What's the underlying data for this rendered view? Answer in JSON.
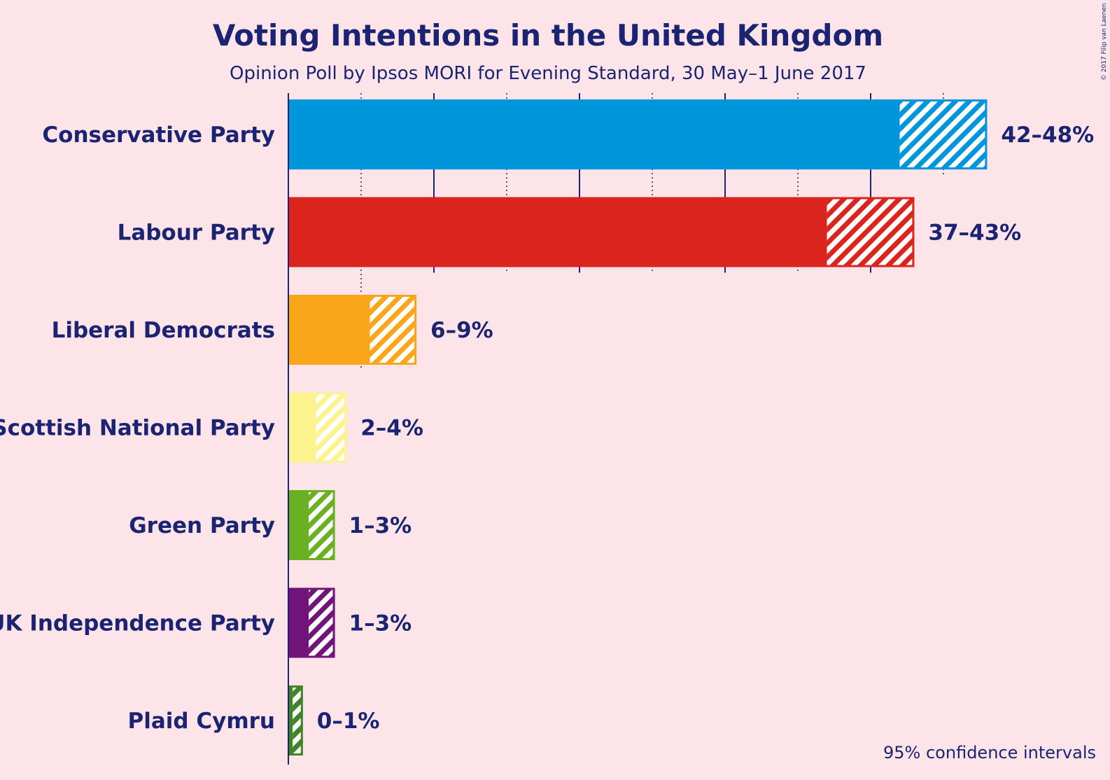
{
  "title": "Voting Intentions in the United Kingdom",
  "subtitle": "Opinion Poll by Ipsos MORI for Evening Standard, 30 May–1 June 2017",
  "note": "95% confidence intervals",
  "copyright": "© 2017 Filip van Laenen",
  "colors": {
    "background": "#fde4e8",
    "text": "#1a2472"
  },
  "chart_data": {
    "type": "bar",
    "orientation": "horizontal",
    "unit": "%",
    "xlim": [
      0,
      50
    ],
    "grid": true,
    "gridlines": [
      5,
      10,
      15,
      20,
      25,
      30,
      35,
      40,
      45
    ],
    "categories": [
      "Conservative Party",
      "Labour Party",
      "Liberal Democrats",
      "Scottish National Party",
      "Green Party",
      "UK Independence Party",
      "Plaid Cymru"
    ],
    "series": [
      {
        "values": [
          42,
          37,
          5.6,
          1.9,
          1.4,
          1.4,
          0.3
        ],
        "ci_high": [
          48,
          43,
          8.8,
          4.0,
          3.2,
          3.2,
          1.0
        ],
        "range_labels": [
          "42–48%",
          "37–43%",
          "6–9%",
          "2–4%",
          "1–3%",
          "1–3%",
          "0–1%"
        ],
        "colors": [
          "#0096db",
          "#dc241f",
          "#faa61a",
          "#fdf38e",
          "#6ab023",
          "#70147a",
          "#3f8428"
        ]
      }
    ]
  }
}
